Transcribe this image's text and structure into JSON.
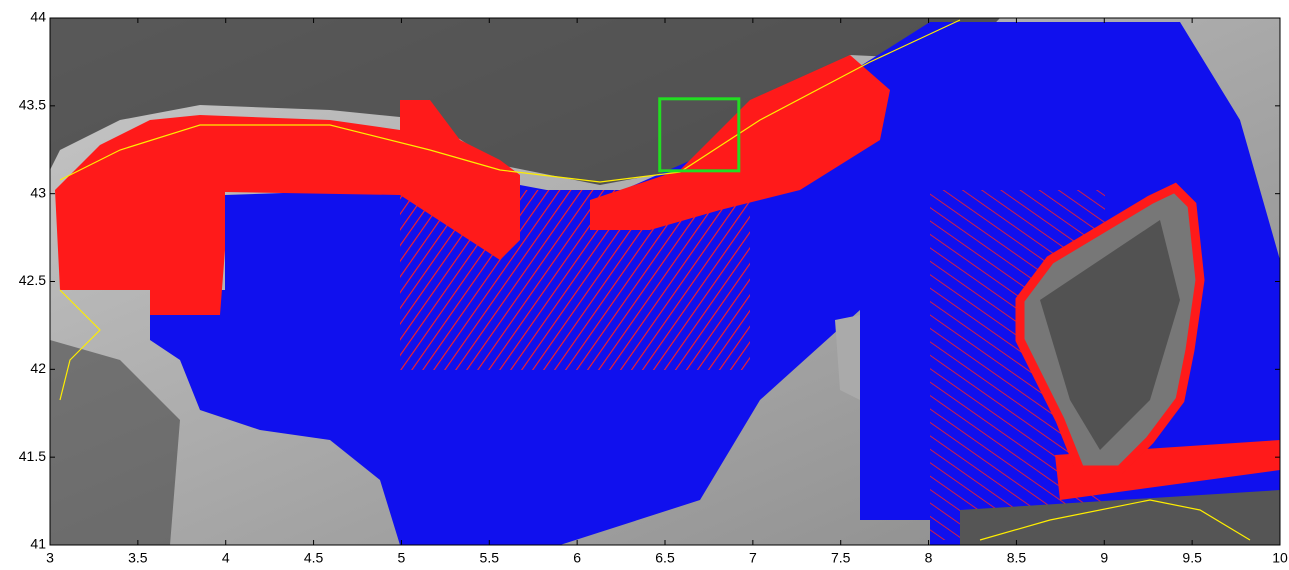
{
  "map": {
    "xlim": [
      3,
      10
    ],
    "ylim": [
      41,
      44
    ],
    "xticks": [
      3,
      3.5,
      4,
      4.5,
      5,
      5.5,
      6,
      6.5,
      7,
      7.5,
      8,
      8.5,
      9,
      9.5,
      10
    ],
    "yticks": [
      41,
      41.5,
      42,
      42.5,
      43,
      43.5,
      44
    ],
    "highlight_box": {
      "xlim": [
        6.47,
        6.92
      ],
      "ylim": [
        43.13,
        43.54
      ],
      "color": "#22dd22"
    }
  }
}
